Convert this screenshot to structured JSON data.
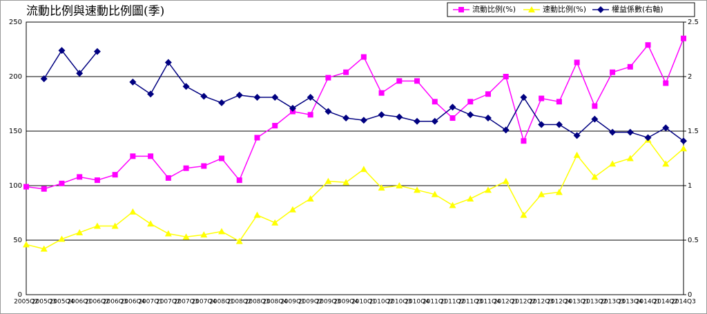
{
  "chart_data": {
    "type": "line",
    "title": "流動比例與速動比例圖(季)",
    "categories": [
      "2005Q2",
      "2005Q3",
      "2005Q4",
      "2006Q1",
      "2006Q2",
      "2006Q3",
      "2006Q4",
      "2007Q1",
      "2007Q2",
      "2007Q3",
      "2007Q4",
      "2008Q1",
      "2008Q2",
      "2008Q3",
      "2008Q4",
      "2009Q1",
      "2009Q2",
      "2009Q3",
      "2009Q4",
      "2010Q1",
      "2010Q2",
      "2010Q3",
      "2010Q4",
      "2011Q1",
      "2011Q2",
      "2011Q3",
      "2011Q4",
      "2012Q1",
      "2012Q2",
      "2012Q3",
      "2012Q4",
      "2013Q1",
      "2013Q2",
      "2013Q3",
      "2013Q4",
      "2014Q1",
      "2014Q2",
      "2014Q3"
    ],
    "series": [
      {
        "name": "流動比例(%)",
        "color": "#ff00ff",
        "marker": "square",
        "values": [
          99,
          97,
          102,
          108,
          105,
          110,
          127,
          127,
          107,
          116,
          118,
          125,
          105,
          144,
          155,
          168,
          165,
          199,
          204,
          218,
          185,
          196,
          196,
          177,
          162,
          177,
          184,
          200,
          141,
          180,
          177,
          213,
          173,
          204,
          209,
          229,
          194,
          235
        ]
      },
      {
        "name": "速動比例(%)",
        "color": "#ffff00",
        "marker": "triangle",
        "values": [
          46,
          42,
          51,
          57,
          63,
          63,
          76,
          65,
          56,
          53,
          55,
          58,
          49,
          73,
          66,
          78,
          88,
          104,
          103,
          115,
          98,
          100,
          96,
          92,
          82,
          88,
          96,
          104,
          73,
          92,
          94,
          128,
          108,
          120,
          125,
          142,
          120,
          134
        ]
      },
      {
        "name": "權益係數(右軸)",
        "color": "#000080",
        "marker": "diamond",
        "axis": "y2",
        "values": [
          null,
          1.98,
          2.24,
          2.03,
          2.23,
          null,
          1.95,
          1.84,
          2.13,
          1.91,
          1.82,
          1.76,
          1.83,
          1.81,
          1.81,
          1.71,
          1.81,
          1.68,
          1.62,
          1.6,
          1.65,
          1.63,
          1.59,
          1.59,
          1.72,
          1.65,
          1.62,
          1.51,
          1.81,
          1.56,
          1.56,
          1.46,
          1.61,
          1.49,
          1.49,
          1.44,
          1.53,
          1.41
        ]
      }
    ],
    "ylim": [
      0,
      250
    ],
    "yticks": [
      0,
      50,
      100,
      150,
      200,
      250
    ],
    "y2lim": [
      0,
      2.5
    ],
    "y2ticks": [
      0,
      0.5,
      1,
      1.5,
      2,
      2.5
    ],
    "grid": true,
    "legend": "top-right"
  }
}
